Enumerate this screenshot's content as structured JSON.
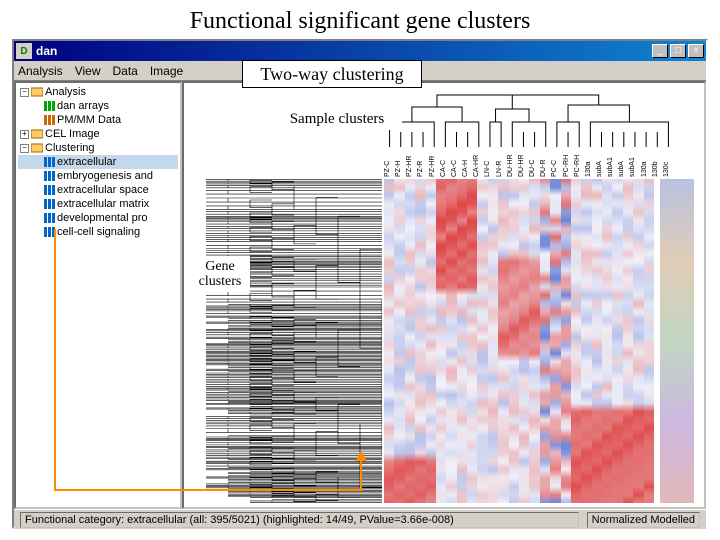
{
  "slide_title": "Functional significant gene clusters",
  "annotations": {
    "twoway": "Two-way clustering",
    "sample": "Sample clusters",
    "gene": "Gene\nclusters"
  },
  "window": {
    "title": "dan",
    "icon_letter": "D",
    "buttons": {
      "min": "_",
      "max": "□",
      "close": "×"
    }
  },
  "menu": [
    "Analysis",
    "View",
    "Data",
    "Image"
  ],
  "tree": [
    {
      "level": 0,
      "expand": true,
      "icon_color": "#ffcc66",
      "label": "Analysis"
    },
    {
      "level": 1,
      "expand": false,
      "icon_color": "#00aa00",
      "label": "dan arrays"
    },
    {
      "level": 1,
      "expand": false,
      "icon_color": "#cc6600",
      "label": "PM/MM Data"
    },
    {
      "level": 0,
      "expand": false,
      "icon_color": "#ffcc66",
      "label": "CEL Image"
    },
    {
      "level": 0,
      "expand": true,
      "icon_color": "#ffcc66",
      "label": "Clustering"
    },
    {
      "level": 1,
      "expand": false,
      "icon_color": "#0066cc",
      "label": "extracellular",
      "selected": true
    },
    {
      "level": 1,
      "expand": false,
      "icon_color": "#0066cc",
      "label": "embryogenesis and"
    },
    {
      "level": 1,
      "expand": false,
      "icon_color": "#0066cc",
      "label": "extracellular space"
    },
    {
      "level": 1,
      "expand": false,
      "icon_color": "#0066cc",
      "label": "extracellular matrix"
    },
    {
      "level": 1,
      "expand": false,
      "icon_color": "#0066cc",
      "label": "developmental pro"
    },
    {
      "level": 1,
      "expand": false,
      "icon_color": "#0066cc",
      "label": "cell-cell signaling"
    }
  ],
  "column_labels": [
    "PZ-C",
    "PZ-H",
    "PZ-HR",
    "PZ-R",
    "PZ-HR",
    "CA-C",
    "CA-C",
    "CA-H",
    "CA-HR",
    "LN-C",
    "LN-R",
    "DU-HR",
    "DU-HR",
    "DU-C",
    "DU-R",
    "PC-C",
    "PC-RH",
    "PC-RH",
    "130a",
    "subA",
    "subA1",
    "subA",
    "subA1",
    "130a",
    "130b",
    "130c"
  ],
  "heatmap": {
    "type": "heatmap",
    "cols": 26,
    "rows": 120,
    "color_low": "#3355cc",
    "color_mid": "#f0f0f8",
    "color_high": "#dd3333",
    "background_color": "#ffffff",
    "col_blocks": [
      {
        "start": 0,
        "end": 5,
        "pattern": "mid-blue"
      },
      {
        "start": 5,
        "end": 9,
        "pattern": "upper-red"
      },
      {
        "start": 9,
        "end": 11,
        "pattern": "mid"
      },
      {
        "start": 11,
        "end": 15,
        "pattern": "lower-red"
      },
      {
        "start": 15,
        "end": 18,
        "pattern": "scatter"
      },
      {
        "start": 18,
        "end": 26,
        "pattern": "bottom-red"
      }
    ]
  },
  "status": {
    "left": "Functional category: extracellular (all: 395/5021) (highlighted: 14/49, PValue=3.66e-008)",
    "right": "Normalized Modelled"
  },
  "dendro": {
    "line_color": "#000000",
    "line_width": 1
  }
}
